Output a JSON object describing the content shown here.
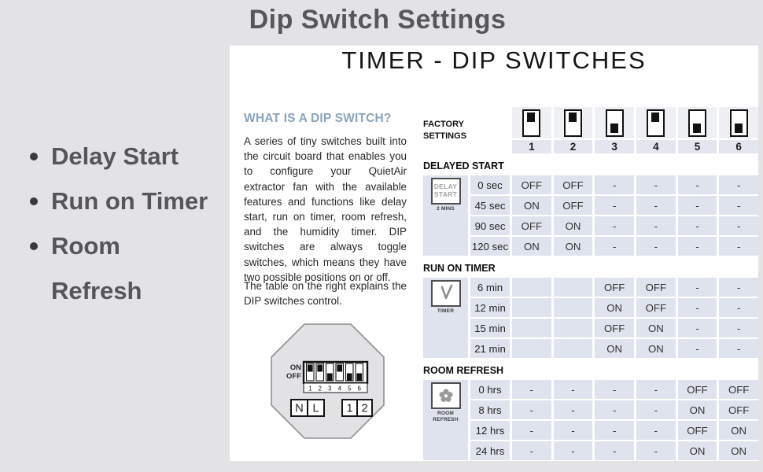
{
  "page_title": "Dip Switch Settings",
  "features": [
    "Delay Start",
    "Run on Timer",
    "Room\nRefresh"
  ],
  "panel": {
    "heading": "TIMER - DIP SWITCHES",
    "about": {
      "heading": "WHAT IS A DIP SWITCH?",
      "para1": "A series of tiny switches built into the circuit board that enables you to configure your QuietAir extractor fan with the available features and functions like delay start, run on timer, room refresh, and the humidity timer. DIP switches are always toggle switches, which means they have two possible positions on or off.",
      "para2": "The table on the right explains the DIP switches control."
    }
  },
  "diagram": {
    "on_label": "ON",
    "off_label": "OFF",
    "switch_numbers": [
      "1",
      "2",
      "3",
      "4",
      "5",
      "6"
    ],
    "switch_states": [
      "on",
      "on",
      "off",
      "on",
      "off",
      "off"
    ],
    "terminals_left": [
      "N",
      "L"
    ],
    "terminals_right": [
      "1",
      "2"
    ]
  },
  "table": {
    "factory_label": "FACTORY\nSETTINGS",
    "columns": [
      "1",
      "2",
      "3",
      "4",
      "5",
      "6"
    ],
    "factory_states": [
      "on",
      "on",
      "off",
      "on",
      "off",
      "off"
    ],
    "sections": [
      {
        "title": "DELAYED START",
        "icon": {
          "type": "delay-start",
          "box_lines": [
            "DELAY",
            "START"
          ],
          "caption": "2 MINS"
        },
        "rows": [
          {
            "label": "0 sec",
            "values": [
              "OFF",
              "OFF",
              "-",
              "-",
              "-",
              "-"
            ]
          },
          {
            "label": "45 sec",
            "values": [
              "ON",
              "OFF",
              "-",
              "-",
              "-",
              "-"
            ]
          },
          {
            "label": "90 sec",
            "values": [
              "OFF",
              "ON",
              "-",
              "-",
              "-",
              "-"
            ]
          },
          {
            "label": "120 sec",
            "values": [
              "ON",
              "ON",
              "-",
              "-",
              "-",
              "-"
            ]
          }
        ]
      },
      {
        "title": "RUN ON TIMER",
        "icon": {
          "type": "timer",
          "caption": "TIMER"
        },
        "rows": [
          {
            "label": "6 min",
            "values": [
              "",
              "",
              "OFF",
              "OFF",
              "-",
              "-"
            ]
          },
          {
            "label": "12 min",
            "values": [
              "",
              "",
              "ON",
              "OFF",
              "-",
              "-"
            ]
          },
          {
            "label": "15 min",
            "values": [
              "",
              "",
              "OFF",
              "ON",
              "-",
              "-"
            ]
          },
          {
            "label": "21 min",
            "values": [
              "",
              "",
              "ON",
              "ON",
              "-",
              "-"
            ]
          }
        ]
      },
      {
        "title": "ROOM REFRESH",
        "icon": {
          "type": "fan",
          "caption": "ROOM\nREFRESH"
        },
        "rows": [
          {
            "label": "0 hrs",
            "values": [
              "-",
              "-",
              "-",
              "-",
              "OFF",
              "OFF"
            ]
          },
          {
            "label": "8 hrs",
            "values": [
              "-",
              "-",
              "-",
              "-",
              "ON",
              "OFF"
            ]
          },
          {
            "label": "12 hrs",
            "values": [
              "-",
              "-",
              "-",
              "-",
              "OFF",
              "ON"
            ]
          },
          {
            "label": "24 hrs",
            "values": [
              "-",
              "-",
              "-",
              "-",
              "ON",
              "ON"
            ]
          }
        ]
      }
    ]
  },
  "colors": {
    "page_bg": "#e3e3e6",
    "panel_bg": "#ffffff",
    "title_text": "#57575a",
    "accent_heading": "#8ba3bd",
    "cell_bg": "#dfe3ed",
    "switch_dark": "#121212"
  }
}
